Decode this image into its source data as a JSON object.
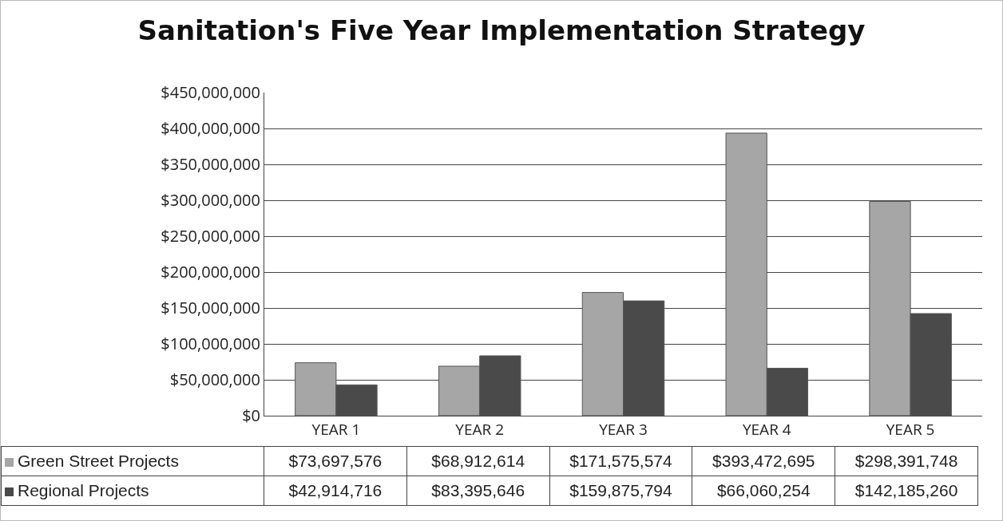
{
  "chart_data": {
    "type": "bar",
    "title": "Sanitation's Five Year Implementation Strategy",
    "categories": [
      "YEAR 1",
      "YEAR 2",
      "YEAR 3",
      "YEAR 4",
      "YEAR 5"
    ],
    "series": [
      {
        "name": "Green Street Projects",
        "color": "#a6a6a6",
        "values": [
          73697576,
          68912614,
          171575574,
          393472695,
          298391748
        ],
        "value_labels": [
          "$73,697,576",
          "$68,912,614",
          "$171,575,574",
          "$393,472,695",
          "$298,391,748"
        ]
      },
      {
        "name": "Regional Projects",
        "color": "#4a4a4a",
        "values": [
          42914716,
          83395646,
          159875794,
          66060254,
          142185260
        ],
        "value_labels": [
          "$42,914,716",
          "$83,395,646",
          "$159,875,794",
          "$66,060,254",
          "$142,185,260"
        ]
      }
    ],
    "ylim": [
      0,
      450000000
    ],
    "yticks": [
      {
        "value": 0,
        "label": "$0"
      },
      {
        "value": 50000000,
        "label": "$50,000,000"
      },
      {
        "value": 100000000,
        "label": "$100,000,000"
      },
      {
        "value": 150000000,
        "label": "$150,000,000"
      },
      {
        "value": 200000000,
        "label": "$200,000,000"
      },
      {
        "value": 250000000,
        "label": "$250,000,000"
      },
      {
        "value": 300000000,
        "label": "$300,000,000"
      },
      {
        "value": 350000000,
        "label": "$350,000,000"
      },
      {
        "value": 400000000,
        "label": "$400,000,000"
      },
      {
        "value": 450000000,
        "label": "$450,000,000"
      }
    ],
    "grid": "y",
    "legend": "bottom"
  }
}
